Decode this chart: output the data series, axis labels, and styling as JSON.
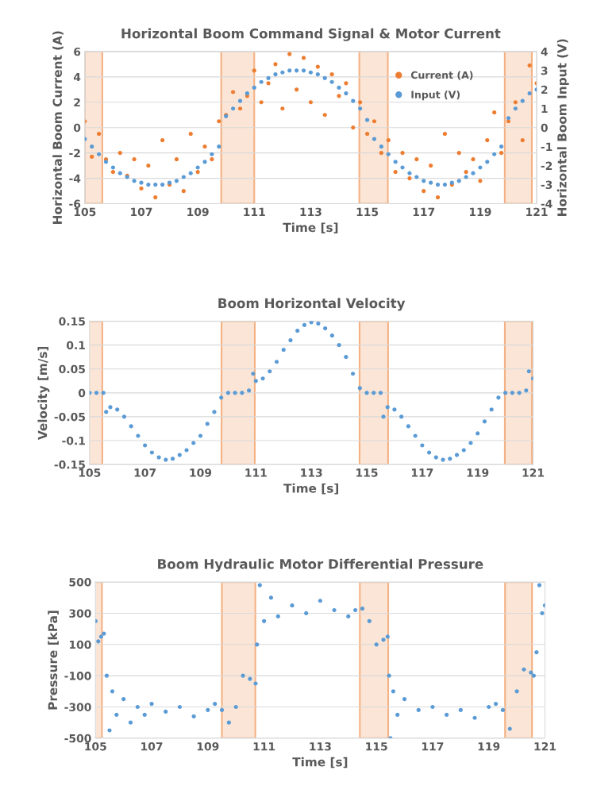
{
  "chart_data": [
    {
      "type": "scatter",
      "title": "Horizontal Boom Command Signal & Motor Current",
      "xlabel": "Time [s]",
      "ylabel": "Horizontal Boom Current (A)",
      "y2label": "Horizontal Boom Input (V)",
      "xlim": [
        105,
        121
      ],
      "xticks": [
        105,
        107,
        109,
        111,
        113,
        115,
        117,
        119,
        121
      ],
      "ylim": [
        -6,
        6
      ],
      "yticks": [
        -6,
        -4,
        -2,
        0,
        2,
        4,
        6
      ],
      "y2lim": [
        -4,
        4
      ],
      "y2ticks": [
        -4,
        -3,
        -2,
        -1,
        0,
        1,
        2,
        3,
        4
      ],
      "grid": "y",
      "legend": "top right",
      "marker": "circle",
      "series": [
        {
          "name": "Current (A)",
          "color": "#ed7d31",
          "x": [
            105,
            105.25,
            105.5,
            105.75,
            106,
            106.25,
            106.5,
            106.75,
            107,
            107.25,
            107.5,
            107.75,
            108,
            108.25,
            108.5,
            108.75,
            109,
            109.25,
            109.5,
            109.75,
            110,
            110.25,
            110.5,
            110.75,
            111,
            111.25,
            111.5,
            111.75,
            112,
            112.25,
            112.5,
            112.75,
            113,
            113.25,
            113.5,
            113.75,
            114,
            114.25,
            114.5,
            114.75,
            115,
            115.25,
            115.5,
            115.75,
            116,
            116.25,
            116.5,
            116.75,
            117,
            117.25,
            117.5,
            117.75,
            118,
            118.25,
            118.5,
            118.75,
            119,
            119.25,
            119.5,
            119.75,
            120,
            120.25,
            120.5,
            120.75,
            121
          ],
          "values": [
            0.5,
            -2.3,
            -0.5,
            -2.5,
            -3.5,
            -2.0,
            -3.8,
            -2.5,
            -4.8,
            -3.0,
            -5.5,
            -1.0,
            -4.5,
            -2.5,
            -5.0,
            -0.5,
            -3.5,
            -1.5,
            -2.5,
            0.5,
            1.0,
            2.8,
            1.5,
            2.5,
            4.5,
            2.0,
            3.5,
            5.0,
            1.5,
            5.8,
            3.0,
            5.5,
            2.0,
            4.8,
            1.0,
            4.2,
            2.5,
            3.5,
            0.0,
            2.0,
            -0.5,
            0.5,
            -2.0,
            -1.0,
            -3.5,
            -2.0,
            -4.0,
            -2.5,
            -5.0,
            -3.0,
            -5.5,
            -0.5,
            -4.5,
            -2.0,
            -3.5,
            -2.5,
            -4.2,
            -1.0,
            1.2,
            -2.0,
            0.5,
            2.0,
            -1.0,
            4.9,
            3.5
          ]
        },
        {
          "name": "Input (V)",
          "color": "#5b9bd5",
          "axis": "y2",
          "x": [
            105,
            105.25,
            105.5,
            105.75,
            106,
            106.25,
            106.5,
            106.75,
            107,
            107.25,
            107.5,
            107.75,
            108,
            108.25,
            108.5,
            108.75,
            109,
            109.25,
            109.5,
            109.75,
            110,
            110.25,
            110.5,
            110.75,
            111,
            111.25,
            111.5,
            111.75,
            112,
            112.25,
            112.5,
            112.75,
            113,
            113.25,
            113.5,
            113.75,
            114,
            114.25,
            114.5,
            114.75,
            115,
            115.25,
            115.5,
            115.75,
            116,
            116.25,
            116.5,
            116.75,
            117,
            117.25,
            117.5,
            117.75,
            118,
            118.25,
            118.5,
            118.75,
            119,
            119.25,
            119.5,
            119.75,
            120,
            120.25,
            120.5,
            120.75,
            121
          ],
          "values": [
            -0.6,
            -1.0,
            -1.4,
            -1.8,
            -2.1,
            -2.4,
            -2.6,
            -2.8,
            -2.9,
            -3.0,
            -3.0,
            -3.0,
            -2.9,
            -2.8,
            -2.6,
            -2.4,
            -2.1,
            -1.8,
            -1.4,
            -1.0,
            0.6,
            1.0,
            1.4,
            1.8,
            2.1,
            2.4,
            2.6,
            2.8,
            2.9,
            3.0,
            3.0,
            3.0,
            2.9,
            2.8,
            2.6,
            2.4,
            2.1,
            1.8,
            1.4,
            1.0,
            0.4,
            -0.6,
            -1.0,
            -1.4,
            -1.8,
            -2.1,
            -2.4,
            -2.6,
            -2.8,
            -2.9,
            -3.0,
            -3.0,
            -2.9,
            -2.8,
            -2.6,
            -2.4,
            -2.1,
            -1.8,
            -1.4,
            -1.0,
            0.5,
            1.0,
            1.4,
            1.8,
            2.0
          ]
        }
      ],
      "bands": [
        {
          "axis": "x",
          "from": 105,
          "to": 105.62,
          "color": "#fbe5d6"
        },
        {
          "axis": "x",
          "from": 109.83,
          "to": 111.0,
          "color": "#fbe5d6"
        },
        {
          "axis": "x",
          "from": 114.72,
          "to": 115.73,
          "color": "#fbe5d6"
        },
        {
          "axis": "x",
          "from": 119.87,
          "to": 120.83,
          "color": "#fbe5d6"
        }
      ]
    },
    {
      "type": "scatter",
      "title": "Boom Horizontal Velocity",
      "xlabel": "Time [s]",
      "ylabel": "Velocity [m/s]",
      "xlim": [
        105,
        121
      ],
      "xticks": [
        105,
        107,
        109,
        111,
        113,
        115,
        117,
        119,
        121
      ],
      "ylim": [
        -0.15,
        0.15
      ],
      "yticks": [
        -0.15,
        -0.1,
        -0.05,
        0,
        0.05,
        0.1,
        0.15
      ],
      "grid": "y",
      "marker": "circle",
      "series": [
        {
          "color": "#5b9bd5",
          "x": [
            105,
            105.25,
            105.5,
            105.6,
            105.75,
            106,
            106.25,
            106.5,
            106.75,
            107,
            107.25,
            107.5,
            107.75,
            108,
            108.25,
            108.5,
            108.75,
            109,
            109.25,
            109.5,
            109.75,
            110,
            110.25,
            110.5,
            110.75,
            110.9,
            111,
            111.25,
            111.5,
            111.75,
            112,
            112.25,
            112.5,
            112.75,
            113,
            113.25,
            113.5,
            113.75,
            114,
            114.25,
            114.5,
            114.75,
            115,
            115.25,
            115.5,
            115.6,
            115.75,
            116,
            116.25,
            116.5,
            116.75,
            117,
            117.25,
            117.5,
            117.75,
            118,
            118.25,
            118.5,
            118.75,
            119,
            119.25,
            119.5,
            119.75,
            120,
            120.25,
            120.5,
            120.75,
            120.85,
            121
          ],
          "values": [
            0,
            0,
            0,
            -0.04,
            -0.03,
            -0.035,
            -0.05,
            -0.07,
            -0.09,
            -0.11,
            -0.125,
            -0.135,
            -0.14,
            -0.138,
            -0.13,
            -0.12,
            -0.105,
            -0.09,
            -0.065,
            -0.04,
            -0.01,
            0,
            0,
            0,
            0.005,
            0.04,
            0.025,
            0.03,
            0.045,
            0.065,
            0.09,
            0.11,
            0.13,
            0.142,
            0.148,
            0.145,
            0.135,
            0.12,
            0.1,
            0.075,
            0.04,
            0.01,
            0,
            0,
            0,
            -0.05,
            -0.03,
            -0.035,
            -0.05,
            -0.07,
            -0.09,
            -0.11,
            -0.125,
            -0.135,
            -0.14,
            -0.138,
            -0.13,
            -0.12,
            -0.105,
            -0.085,
            -0.06,
            -0.035,
            -0.01,
            0,
            0,
            0,
            0.005,
            0.045,
            0.03
          ]
        }
      ],
      "bands": [
        {
          "axis": "x",
          "from": 104.83,
          "to": 105.46,
          "color": "#fbe5d6"
        },
        {
          "axis": "x",
          "from": 109.76,
          "to": 110.96,
          "color": "#fbe5d6"
        },
        {
          "axis": "x",
          "from": 114.74,
          "to": 115.77,
          "color": "#fbe5d6"
        },
        {
          "axis": "x",
          "from": 119.98,
          "to": 120.96,
          "color": "#fbe5d6"
        }
      ]
    },
    {
      "type": "scatter",
      "title": "Boom Hydraulic Motor Differential Pressure",
      "xlabel": "Time [s]",
      "ylabel": "Pressure [kPa]",
      "xlim": [
        105,
        121
      ],
      "xticks": [
        105,
        107,
        109,
        111,
        113,
        115,
        117,
        119,
        121
      ],
      "ylim": [
        -500,
        500
      ],
      "yticks": [
        -500,
        -300,
        -100,
        100,
        300,
        500
      ],
      "grid": "y",
      "marker": "circle",
      "series": [
        {
          "color": "#5b9bd5",
          "x": [
            105,
            105.1,
            105.2,
            105.3,
            105.4,
            105.5,
            105.6,
            105.75,
            106,
            106.25,
            106.5,
            106.75,
            107,
            107.5,
            108,
            108.5,
            109,
            109.25,
            109.5,
            109.75,
            110,
            110.25,
            110.5,
            110.7,
            110.75,
            110.85,
            111,
            111.25,
            111.5,
            112,
            112.5,
            113,
            113.5,
            114,
            114.25,
            114.5,
            114.75,
            115,
            115.25,
            115.4,
            115.45,
            115.5,
            115.6,
            115.75,
            116,
            116.5,
            117,
            117.5,
            118,
            118.5,
            119,
            119.25,
            119.5,
            119.75,
            120,
            120.25,
            120.5,
            120.6,
            120.7,
            120.8,
            120.9,
            121
          ],
          "values": [
            250,
            120,
            150,
            170,
            -100,
            -450,
            -200,
            -350,
            -250,
            -400,
            -300,
            -350,
            -280,
            -330,
            -300,
            -360,
            -320,
            -280,
            -320,
            -400,
            -300,
            -100,
            -120,
            -150,
            100,
            480,
            250,
            400,
            280,
            350,
            300,
            380,
            320,
            280,
            320,
            330,
            250,
            100,
            130,
            150,
            -100,
            -500,
            -200,
            -350,
            -250,
            -320,
            -300,
            -350,
            -320,
            -370,
            -300,
            -280,
            -320,
            -440,
            -200,
            -60,
            -80,
            -100,
            50,
            480,
            300,
            350
          ]
        }
      ],
      "bands": [
        {
          "axis": "x",
          "from": 104.61,
          "to": 105.23,
          "color": "#fbe5d6"
        },
        {
          "axis": "x",
          "from": 109.5,
          "to": 110.69,
          "color": "#fbe5d6"
        },
        {
          "axis": "x",
          "from": 114.41,
          "to": 115.42,
          "color": "#fbe5d6"
        },
        {
          "axis": "x",
          "from": 119.58,
          "to": 120.54,
          "color": "#fbe5d6"
        }
      ]
    }
  ]
}
